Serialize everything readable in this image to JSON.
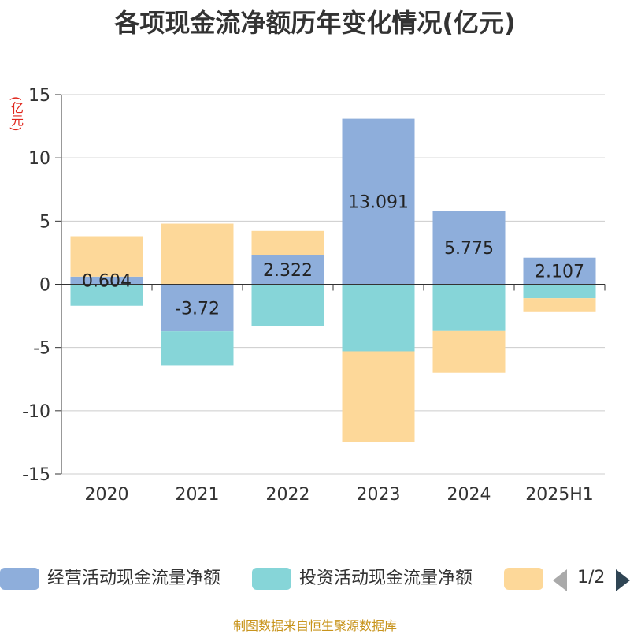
{
  "title": "各项现金流净额历年变化情况(亿元)",
  "unit_label": "(亿元)",
  "source": "制图数据来自恒生聚源数据库",
  "pager": {
    "text": "1/2"
  },
  "legend": [
    {
      "label": "经营活动现金流量净额",
      "color": "#8eaedb"
    },
    {
      "label": "投资活动现金流量净额",
      "color": "#86d5d8"
    },
    {
      "label": "",
      "color": "#fdd899"
    }
  ],
  "chart_data": {
    "type": "bar",
    "stacked": true,
    "categories": [
      "2020",
      "2021",
      "2022",
      "2023",
      "2024",
      "2025H1"
    ],
    "ylim": [
      -15,
      15
    ],
    "yticks": [
      15,
      10,
      5,
      0,
      -5,
      -10,
      -15
    ],
    "grid": true,
    "legend_position": "bottom",
    "series": [
      {
        "name": "经营活动现金流量净额",
        "color": "#8eaedb",
        "values": [
          0.604,
          -3.72,
          2.322,
          13.091,
          5.775,
          2.107
        ],
        "labels": [
          "0.604",
          "-3.72",
          "2.322",
          "13.091",
          "5.775",
          "2.107"
        ]
      },
      {
        "name": "投资活动现金流量净额",
        "color": "#86d5d8",
        "values": [
          -1.7,
          -2.7,
          -3.3,
          -5.3,
          -3.7,
          -1.1
        ]
      },
      {
        "name": "",
        "color": "#fdd899",
        "values": [
          3.2,
          4.8,
          1.9,
          -7.2,
          -3.3,
          -1.1
        ]
      }
    ]
  }
}
